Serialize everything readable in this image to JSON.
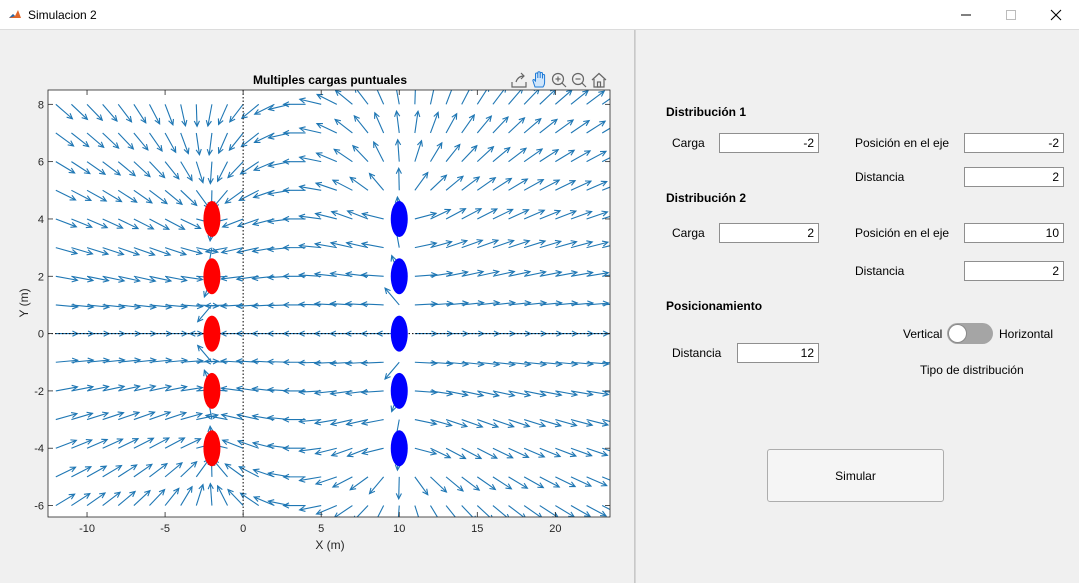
{
  "window": {
    "title": "Simulacion 2",
    "minimize_icon": "minimize-icon",
    "maximize_icon": "maximize-icon",
    "close_icon": "close-icon",
    "app_icon": "matlab-icon"
  },
  "axes_toolbar": {
    "icons": [
      "export-icon",
      "pan-hand-icon",
      "zoom-in-icon",
      "zoom-out-icon",
      "home-icon"
    ]
  },
  "chart_data": {
    "type": "quiver",
    "title": "Multiples cargas puntuales",
    "xlabel": "X (m)",
    "ylabel": "Y (m)",
    "xlim": [
      -12.5,
      23.5
    ],
    "ylim": [
      -6.4,
      8.5
    ],
    "xticks": [
      -10,
      -5,
      0,
      5,
      10,
      15,
      20
    ],
    "yticks": [
      -6,
      -4,
      -2,
      0,
      2,
      4,
      6,
      8
    ],
    "grid": false,
    "arrow_color": "#1f77b4",
    "reference_lines": {
      "x": 0,
      "y": 0,
      "style": "dotted"
    },
    "arrow_grid": {
      "x_start": -12,
      "x_end": 23,
      "x_step": 1.0,
      "y_start": -6,
      "y_end": 8,
      "y_step": 1.0
    },
    "series": [
      {
        "charge": -2,
        "color": "#ff0000",
        "x": [
          -2,
          -2,
          -2,
          -2,
          -2
        ],
        "y": [
          -4,
          -2,
          0,
          2,
          4
        ]
      },
      {
        "charge": 2,
        "color": "#0000ff",
        "x": [
          10,
          10,
          10,
          10,
          10
        ],
        "y": [
          -4,
          -2,
          0,
          2,
          4
        ]
      }
    ]
  },
  "form": {
    "dist1": {
      "heading": "Distribución 1",
      "carga_label": "Carga",
      "carga_value": "-2",
      "posicion_label": "Posición en el eje",
      "posicion_value": "-2",
      "distancia_label": "Distancia",
      "distancia_value": "2"
    },
    "dist2": {
      "heading": "Distribución 2",
      "carga_label": "Carga",
      "carga_value": "2",
      "posicion_label": "Posición en el eje",
      "posicion_value": "10",
      "distancia_label": "Distancia",
      "distancia_value": "2"
    },
    "posicionamiento": {
      "heading": "Posicionamiento",
      "distancia_label": "Distancia",
      "distancia_value": "12",
      "toggle_left": "Vertical",
      "toggle_right": "Horizontal",
      "toggle_caption": "Tipo de distribución",
      "toggle_state": "Vertical"
    },
    "simular_label": "Simular"
  }
}
